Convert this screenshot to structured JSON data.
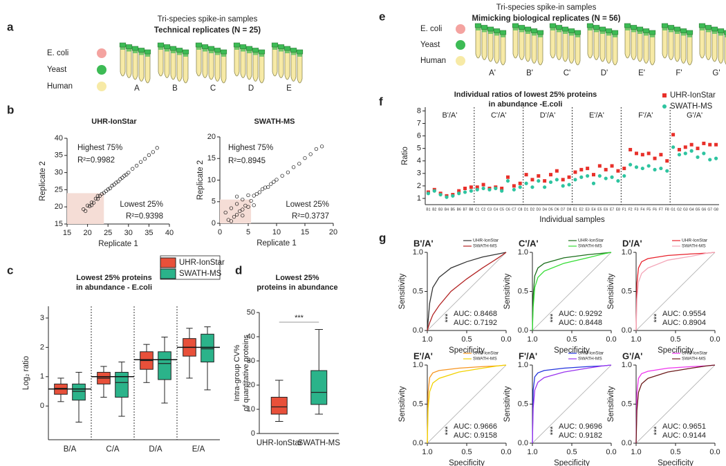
{
  "panel_labels": [
    "a",
    "b",
    "c",
    "d",
    "e",
    "f",
    "g"
  ],
  "diagram_a": {
    "title": "Tri-species spike-in samples",
    "subtitle": "Technical replicates (N = 25)",
    "species": [
      "E. coli",
      "Yeast",
      "Human"
    ],
    "species_colors": [
      "#f4a3a0",
      "#3dbb55",
      "#f7eaa6"
    ],
    "groups": [
      "A",
      "B",
      "C",
      "D",
      "E"
    ]
  },
  "diagram_e": {
    "title": "Tri-species spike-in samples",
    "subtitle": "Mimicking biological replicates (N = 56)",
    "species": [
      "E. coli",
      "Yeast",
      "Human"
    ],
    "species_colors": [
      "#f4a3a0",
      "#3dbb55",
      "#f7eaa6"
    ],
    "groups": [
      "A'",
      "B'",
      "C'",
      "D'",
      "E'",
      "F'",
      "G'"
    ]
  },
  "chart_data": [
    {
      "type": "scatter",
      "title": "UHR-IonStar",
      "xlabel": "Replicate 1",
      "ylabel": "Replicate 2",
      "xlim": [
        15,
        40
      ],
      "ylim": [
        15,
        40
      ],
      "xticks": [
        15,
        20,
        25,
        30,
        35,
        40
      ],
      "yticks": [
        15,
        20,
        25,
        30,
        35,
        40
      ],
      "shaded_region": {
        "x": [
          15,
          24
        ],
        "y": [
          15,
          24
        ],
        "color": "#f5ddd6"
      },
      "annotations": [
        {
          "text": "Highest 75%",
          "color": "#1f2f8f"
        },
        {
          "text": "R²=0.9982",
          "color": "#1f2f8f"
        },
        {
          "text": "Lowest 25%",
          "color": "#b5251f"
        },
        {
          "text": "R²=0.9398",
          "color": "#b5251f"
        }
      ],
      "x": [
        19,
        20,
        20.5,
        21,
        21.5,
        22,
        22.5,
        23,
        23.5,
        24,
        24.5,
        25,
        25.5,
        26,
        26.5,
        27,
        27.5,
        28,
        28.5,
        29,
        29.5,
        30,
        31,
        32,
        33,
        34,
        35,
        36,
        37,
        21,
        22.5,
        19.5
      ],
      "values": [
        19.3,
        20.4,
        20.2,
        21.3,
        21.2,
        22.4,
        22.3,
        23.2,
        23.8,
        24.1,
        24.6,
        25.1,
        25.4,
        26.2,
        26.5,
        27.1,
        27.4,
        28.1,
        28.5,
        29.1,
        29.4,
        30.0,
        31.1,
        32.0,
        33.1,
        34.0,
        35.1,
        36.0,
        37.2,
        20.5,
        23.2,
        18.8
      ]
    },
    {
      "type": "scatter",
      "title": "SWATH-MS",
      "xlabel": "Replicate 1",
      "ylabel": "Replicate 2",
      "xlim": [
        0,
        20
      ],
      "ylim": [
        0,
        20
      ],
      "xticks": [
        0,
        5,
        10,
        15,
        20
      ],
      "yticks": [
        0,
        5,
        10,
        15,
        20
      ],
      "shaded_region": {
        "x": [
          0,
          5.5
        ],
        "y": [
          0,
          5.5
        ],
        "color": "#f5ddd6"
      },
      "annotations": [
        {
          "text": "Highest 75%",
          "color": "#1f2f8f"
        },
        {
          "text": "R²=0.8945",
          "color": "#1f2f8f"
        },
        {
          "text": "Lowest 25%",
          "color": "#b5251f"
        },
        {
          "text": "R²=0.3737",
          "color": "#b5251f"
        }
      ],
      "x": [
        1,
        1.5,
        2,
        2.5,
        3,
        3,
        3.5,
        4,
        4,
        4.5,
        5,
        5,
        5.5,
        6,
        6.5,
        7,
        7.5,
        8,
        8.5,
        9,
        9.5,
        10,
        11,
        12,
        13,
        14,
        15,
        16,
        17,
        18,
        2,
        4,
        6,
        3
      ],
      "values": [
        2.5,
        0.8,
        3.5,
        1.5,
        4.5,
        2,
        2.8,
        5.5,
        3.2,
        4.1,
        6.5,
        3.8,
        5.2,
        6.4,
        6.8,
        7.2,
        7.9,
        8.3,
        8.4,
        9.1,
        9.6,
        10.1,
        11.0,
        11.8,
        13.0,
        13.8,
        15.1,
        16.0,
        17.2,
        17.8,
        0.5,
        1.8,
        4.2,
        6.2
      ]
    },
    {
      "type": "box",
      "title": [
        "Lowest 25% proteins",
        "in abundance - E.coli"
      ],
      "ylabel": "Log₂ ratio",
      "categories": [
        "B/A",
        "C/A",
        "D/A",
        "E/A"
      ],
      "ylim": [
        -1.15,
        3.4
      ],
      "yticks": [
        0,
        1,
        2,
        3
      ],
      "dividers": true,
      "reference_values": [
        0.58,
        1.0,
        1.58,
        2.0
      ],
      "series": [
        {
          "name": "UHR-IonStar",
          "color": "#e8503a",
          "values": [
            [
              0.15,
              0.4,
              0.6,
              0.75,
              0.95
            ],
            [
              0.3,
              0.75,
              0.95,
              1.15,
              1.35
            ],
            [
              0.8,
              1.25,
              1.55,
              1.85,
              2.1
            ],
            [
              0.95,
              1.7,
              2.0,
              2.3,
              2.65
            ]
          ]
        },
        {
          "name": "SWATH-MS",
          "color": "#2bb38a",
          "values": [
            [
              -0.55,
              0.2,
              0.5,
              0.75,
              1.15
            ],
            [
              -0.35,
              0.3,
              0.8,
              1.15,
              1.5
            ],
            [
              0.1,
              0.9,
              1.45,
              1.85,
              2.35
            ],
            [
              0.55,
              1.5,
              1.95,
              2.45,
              2.7
            ]
          ]
        }
      ]
    },
    {
      "type": "box",
      "title": [
        "Lowest 25%",
        "proteins in abundance"
      ],
      "ylabel": [
        "Intra-group CV%",
        "of quantitative proteins"
      ],
      "categories": [
        "UHR-IonStar",
        "SWATH-MS"
      ],
      "ylim": [
        0,
        50
      ],
      "yticks": [
        0,
        10,
        20,
        30,
        40,
        50
      ],
      "annotation": "***",
      "series": [
        {
          "color": "#e8503a",
          "values": [
            [
              5,
              8,
              11,
              15,
              22
            ],
            null
          ]
        },
        {
          "color": "#2bb38a",
          "values": [
            null,
            [
              8,
              12,
              17,
              26,
              43
            ]
          ]
        }
      ]
    },
    {
      "type": "dot",
      "title": [
        "Individual ratios of lowest 25% proteins",
        "in abundance -E.coli"
      ],
      "xlabel": "Individual samples",
      "ylabel": "Ratio",
      "ylim": [
        0.5,
        8.3
      ],
      "yticks": [
        1,
        2,
        3,
        4,
        5,
        6,
        7,
        8
      ],
      "groups": [
        "B'/A'",
        "C'/A'",
        "D'/A'",
        "E'/A'",
        "F'/A'",
        "G'/A'"
      ],
      "categories": [
        "B1",
        "B2",
        "B3",
        "B4",
        "B5",
        "B6",
        "B7",
        "B8",
        "C1",
        "C2",
        "C3",
        "C4",
        "C5",
        "C6",
        "C7",
        "C8",
        "D1",
        "D2",
        "D3",
        "D4",
        "D5",
        "D6",
        "D7",
        "D8",
        "E1",
        "E2",
        "E3",
        "E4",
        "E5",
        "E6",
        "E7",
        "E8",
        "F1",
        "F2",
        "F3",
        "F4",
        "F5",
        "F6",
        "F7",
        "F8",
        "G1",
        "G2",
        "G3",
        "G4",
        "G5",
        "G6",
        "G7",
        "G8"
      ],
      "series": [
        {
          "name": "UHR-IonStar",
          "color": "#e8302a",
          "marker": "square",
          "values": [
            1.5,
            1.7,
            1.4,
            1.2,
            1.3,
            1.6,
            1.8,
            1.9,
            1.9,
            2.1,
            1.8,
            1.9,
            1.8,
            2.7,
            2.0,
            2.2,
            2.9,
            2.5,
            2.8,
            2.4,
            2.9,
            3.2,
            2.5,
            2.7,
            3.1,
            3.3,
            3.4,
            2.9,
            3.6,
            3.3,
            3.6,
            3.2,
            3.4,
            4.9,
            4.6,
            4.5,
            4.6,
            4.2,
            4.5,
            4.0,
            6.1,
            4.9,
            5.1,
            5.3,
            5.0,
            5.4,
            5.3,
            5.3
          ]
        },
        {
          "name": "SWATH-MS",
          "color": "#2ec4a0",
          "marker": "circle",
          "values": [
            1.4,
            1.6,
            1.3,
            1.1,
            1.2,
            1.4,
            1.5,
            1.6,
            1.7,
            1.8,
            1.7,
            1.8,
            1.6,
            2.4,
            1.7,
            1.9,
            2.2,
            1.9,
            2.4,
            1.9,
            2.3,
            2.5,
            2.0,
            2.1,
            2.5,
            2.7,
            2.8,
            2.2,
            2.8,
            2.6,
            2.7,
            2.4,
            2.8,
            3.7,
            3.5,
            3.4,
            3.6,
            3.3,
            3.4,
            3.2,
            5.1,
            4.5,
            4.6,
            4.8,
            4.3,
            4.6,
            4.1,
            4.2
          ]
        }
      ]
    },
    {
      "type": "line",
      "title": "B'/A'",
      "xlabel": "Specificity",
      "ylabel": "Sensitivity",
      "annotation": "***",
      "xlim": [
        1,
        0
      ],
      "ylim": [
        0,
        1
      ],
      "xticks": [
        {
          "value": 1,
          "label": "1.0"
        },
        0.5,
        {
          "value": 0,
          "label": "0.0"
        }
      ],
      "yticks": [
        {
          "value": 0,
          "label": "0.0"
        },
        0.5,
        {
          "value": 1,
          "label": "1.0"
        }
      ],
      "series": [
        {
          "name": "UHR-IonStar",
          "color": "#333333",
          "auc_label": "AUC: 0.8468",
          "x": [
            1,
            0.97,
            0.93,
            0.85,
            0.7,
            0.5,
            0.3,
            0.1,
            0
          ],
          "values": [
            0,
            0.35,
            0.55,
            0.68,
            0.8,
            0.88,
            0.94,
            0.98,
            1
          ]
        },
        {
          "name": "SWATH-MS",
          "color": "#b22222",
          "auc_label": "AUC: 0.7192",
          "x": [
            1,
            0.97,
            0.93,
            0.85,
            0.7,
            0.5,
            0.3,
            0.1,
            0
          ],
          "values": [
            0,
            0.1,
            0.2,
            0.32,
            0.5,
            0.66,
            0.8,
            0.93,
            1
          ]
        }
      ]
    },
    {
      "type": "line",
      "title": "C'/A'",
      "xlabel": "Specificity",
      "ylabel": "Sensitivity",
      "annotation": "***",
      "xlim": [
        1,
        0
      ],
      "ylim": [
        0,
        1
      ],
      "xticks": [
        {
          "value": 1,
          "label": "1.0"
        },
        0.5,
        {
          "value": 0,
          "label": "0.0"
        }
      ],
      "yticks": [
        {
          "value": 0,
          "label": "0.0"
        },
        0.5,
        {
          "value": 1,
          "label": "1.0"
        }
      ],
      "series": [
        {
          "name": "UHR-IonStar",
          "color": "#1a6e1a",
          "auc_label": "AUC: 0.9292",
          "x": [
            1,
            0.99,
            0.97,
            0.93,
            0.85,
            0.6,
            0.3,
            0.1,
            0
          ],
          "values": [
            0,
            0.45,
            0.7,
            0.8,
            0.86,
            0.93,
            0.97,
            0.99,
            1
          ]
        },
        {
          "name": "SWATH-MS",
          "color": "#33dd33",
          "auc_label": "AUC: 0.8448",
          "x": [
            1,
            0.99,
            0.97,
            0.93,
            0.85,
            0.6,
            0.3,
            0.1,
            0
          ],
          "values": [
            0,
            0.3,
            0.55,
            0.68,
            0.76,
            0.86,
            0.93,
            0.98,
            1
          ]
        }
      ]
    },
    {
      "type": "line",
      "title": "D'/A'",
      "xlabel": "Specificity",
      "ylabel": "Sensitivity",
      "annotation": "***",
      "xlim": [
        1,
        0
      ],
      "ylim": [
        0,
        1
      ],
      "xticks": [
        {
          "value": 1,
          "label": "1.0"
        },
        0.5,
        {
          "value": 0,
          "label": "0.0"
        }
      ],
      "yticks": [
        {
          "value": 0,
          "label": "0.0"
        },
        0.5,
        {
          "value": 1,
          "label": "1.0"
        }
      ],
      "series": [
        {
          "name": "UHR-IonStar",
          "color": "#e8202a",
          "auc_label": "AUC: 0.9554",
          "x": [
            1,
            0.99,
            0.97,
            0.93,
            0.85,
            0.6,
            0.3,
            0.1,
            0
          ],
          "values": [
            0,
            0.6,
            0.8,
            0.88,
            0.92,
            0.96,
            0.98,
            0.99,
            1
          ]
        },
        {
          "name": "SWATH-MS",
          "color": "#f4a6b8",
          "auc_label": "AUC: 0.8904",
          "x": [
            1,
            0.99,
            0.97,
            0.93,
            0.85,
            0.6,
            0.3,
            0.1,
            0
          ],
          "values": [
            0,
            0.4,
            0.62,
            0.73,
            0.8,
            0.9,
            0.95,
            0.99,
            1
          ]
        }
      ]
    },
    {
      "type": "line",
      "title": "E'/A'",
      "xlabel": "Specificity",
      "ylabel": "Sensitivity",
      "annotation": "***",
      "xlim": [
        1,
        0
      ],
      "ylim": [
        0,
        1
      ],
      "xticks": [
        {
          "value": 1,
          "label": "1.0"
        },
        0.5,
        {
          "value": 0,
          "label": "0.0"
        }
      ],
      "yticks": [
        {
          "value": 0,
          "label": "0.0"
        },
        0.5,
        {
          "value": 1,
          "label": "1.0"
        }
      ],
      "series": [
        {
          "name": "UHR-IonStar",
          "color": "#f7941d",
          "auc_label": "AUC: 0.9666",
          "x": [
            1,
            0.99,
            0.97,
            0.93,
            0.85,
            0.6,
            0.3,
            0.1,
            0
          ],
          "values": [
            0,
            0.65,
            0.84,
            0.9,
            0.93,
            0.96,
            0.98,
            0.99,
            1
          ]
        },
        {
          "name": "SWATH-MS",
          "color": "#f2d200",
          "auc_label": "AUC: 0.9158",
          "x": [
            1,
            0.99,
            0.97,
            0.93,
            0.85,
            0.6,
            0.3,
            0.1,
            0
          ],
          "values": [
            0,
            0.45,
            0.66,
            0.77,
            0.83,
            0.91,
            0.96,
            0.99,
            1
          ]
        }
      ]
    },
    {
      "type": "line",
      "title": "F'/A'",
      "xlabel": "Specificity",
      "ylabel": "Sensitivity",
      "annotation": "***",
      "xlim": [
        1,
        0
      ],
      "ylim": [
        0,
        1
      ],
      "xticks": [
        {
          "value": 1,
          "label": "1.0"
        },
        0.5,
        {
          "value": 0,
          "label": "0.0"
        }
      ],
      "yticks": [
        {
          "value": 0,
          "label": "0.0"
        },
        0.5,
        {
          "value": 1,
          "label": "1.0"
        }
      ],
      "series": [
        {
          "name": "UHR-IonStar",
          "color": "#2233dd",
          "auc_label": "AUC: 0.9696",
          "x": [
            1,
            0.99,
            0.97,
            0.93,
            0.85,
            0.6,
            0.3,
            0.1,
            0
          ],
          "values": [
            0,
            0.68,
            0.85,
            0.9,
            0.93,
            0.96,
            0.98,
            0.99,
            1
          ]
        },
        {
          "name": "SWATH-MS",
          "color": "#9933ee",
          "auc_label": "AUC: 0.9182",
          "x": [
            1,
            0.99,
            0.97,
            0.93,
            0.85,
            0.6,
            0.3,
            0.1,
            0
          ],
          "values": [
            0,
            0.45,
            0.68,
            0.78,
            0.84,
            0.91,
            0.96,
            0.99,
            1
          ]
        }
      ]
    },
    {
      "type": "line",
      "title": "G'/A'",
      "xlabel": "Specificity",
      "ylabel": "Sensitivity",
      "annotation": "***",
      "xlim": [
        1,
        0
      ],
      "ylim": [
        0,
        1
      ],
      "xticks": [
        {
          "value": 1,
          "label": "1.0"
        },
        0.5,
        {
          "value": 0,
          "label": "0.0"
        }
      ],
      "yticks": [
        {
          "value": 0,
          "label": "0.0"
        },
        0.5,
        {
          "value": 1,
          "label": "1.0"
        }
      ],
      "series": [
        {
          "name": "UHR-IonStar",
          "color": "#ee33ee",
          "auc_label": "AUC: 0.9651",
          "x": [
            1,
            0.99,
            0.97,
            0.93,
            0.85,
            0.6,
            0.3,
            0.1,
            0
          ],
          "values": [
            0,
            0.64,
            0.83,
            0.89,
            0.92,
            0.96,
            0.98,
            0.99,
            1
          ]
        },
        {
          "name": "SWATH-MS",
          "color": "#6b1a1a",
          "auc_label": "AUC: 0.9144",
          "x": [
            1,
            0.99,
            0.97,
            0.93,
            0.85,
            0.6,
            0.3,
            0.1,
            0
          ],
          "values": [
            0,
            0.42,
            0.65,
            0.76,
            0.83,
            0.91,
            0.96,
            0.99,
            1
          ]
        }
      ]
    }
  ]
}
